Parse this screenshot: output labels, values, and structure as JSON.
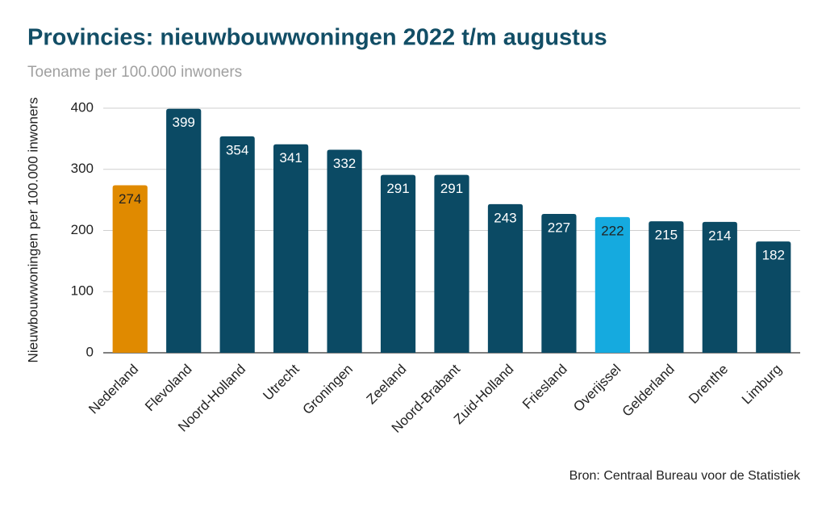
{
  "chart_data": {
    "type": "bar",
    "title": "Provincies: nieuwbouwwoningen 2022 t/m augustus",
    "subtitle": "Toename per 100.000 inwoners",
    "y_label": "Nieuwbouwwoningen per 100.000 inwoners",
    "source": "Bron: Centraal Bureau voor de Statistiek",
    "categories": [
      "Nederland",
      "Flevoland",
      "Noord-Holland",
      "Utrecht",
      "Groningen",
      "Zeeland",
      "Noord-Brabant",
      "Zuid-Holland",
      "Friesland",
      "Overijssel",
      "Gelderland",
      "Drenthe",
      "Limburg"
    ],
    "values": [
      274,
      399,
      354,
      341,
      332,
      291,
      291,
      243,
      227,
      222,
      215,
      214,
      182
    ],
    "colors": [
      "#e08a00",
      "#0b4a64",
      "#0b4a64",
      "#0b4a64",
      "#0b4a64",
      "#0b4a64",
      "#0b4a64",
      "#0b4a64",
      "#0b4a64",
      "#15aadf",
      "#0b4a64",
      "#0b4a64",
      "#0b4a64"
    ],
    "value_label_colors": [
      "#222222",
      "#ffffff",
      "#ffffff",
      "#ffffff",
      "#ffffff",
      "#ffffff",
      "#ffffff",
      "#ffffff",
      "#ffffff",
      "#222222",
      "#ffffff",
      "#ffffff",
      "#ffffff"
    ],
    "ylim": [
      0,
      400
    ],
    "yticks": [
      0,
      100,
      200,
      300,
      400
    ],
    "grid": true
  }
}
